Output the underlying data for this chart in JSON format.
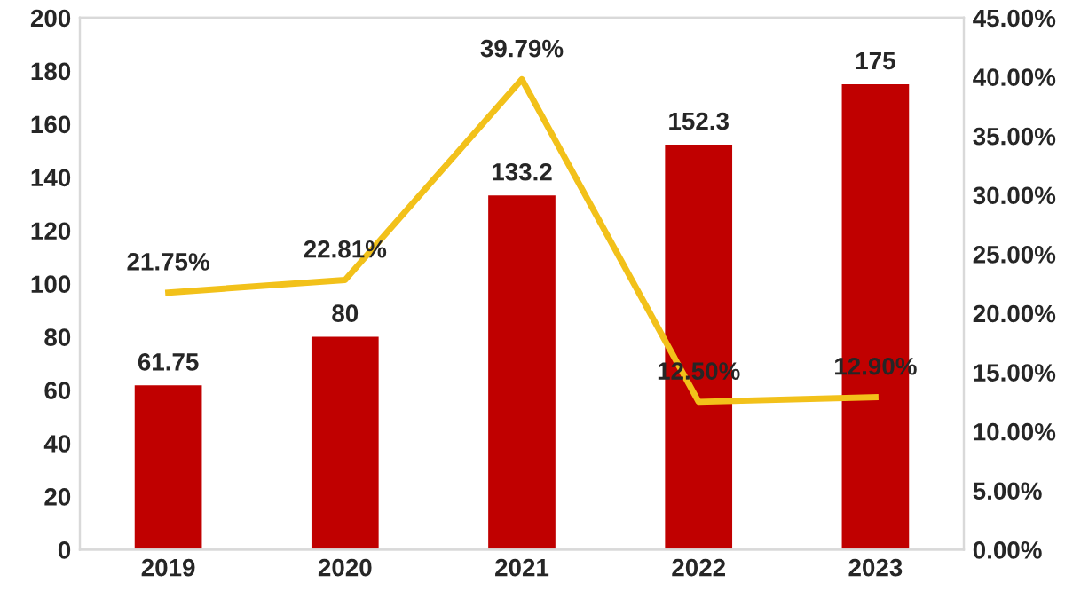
{
  "chart_data": {
    "type": "bar",
    "categories": [
      "2019",
      "2020",
      "2021",
      "2022",
      "2023"
    ],
    "series": [
      {
        "color": "#c00000",
        "values": [
          61.75,
          80,
          133.2,
          152.3,
          175
        ],
        "value_labels": [
          "61.75",
          "80",
          "133.2",
          "152.3",
          "175"
        ]
      },
      {
        "type": "line",
        "axis": "y2",
        "color": "#f2c11a",
        "values": [
          21.75,
          22.81,
          39.79,
          12.5,
          12.9
        ],
        "value_labels": [
          "21.75%",
          "22.81%",
          "39.79%",
          "12.50%",
          "12.90%"
        ]
      }
    ],
    "ylim": [
      0,
      200
    ],
    "yticks": [
      0,
      20,
      40,
      60,
      80,
      100,
      120,
      140,
      160,
      180,
      200
    ],
    "y2lim": [
      0,
      45
    ],
    "y2ticks": [
      {
        "value": 0,
        "label": "0.00%"
      },
      {
        "value": 5,
        "label": "5.00%"
      },
      {
        "value": 10,
        "label": "10.00%"
      },
      {
        "value": 15,
        "label": "15.00%"
      },
      {
        "value": 20,
        "label": "20.00%"
      },
      {
        "value": 25,
        "label": "25.00%"
      },
      {
        "value": 30,
        "label": "30.00%"
      },
      {
        "value": 35,
        "label": "35.00%"
      },
      {
        "value": 40,
        "label": "40.00%"
      },
      {
        "value": 45,
        "label": "45.00%"
      }
    ],
    "grid": false,
    "legend": false,
    "marker": "none",
    "line_style": "solid"
  }
}
